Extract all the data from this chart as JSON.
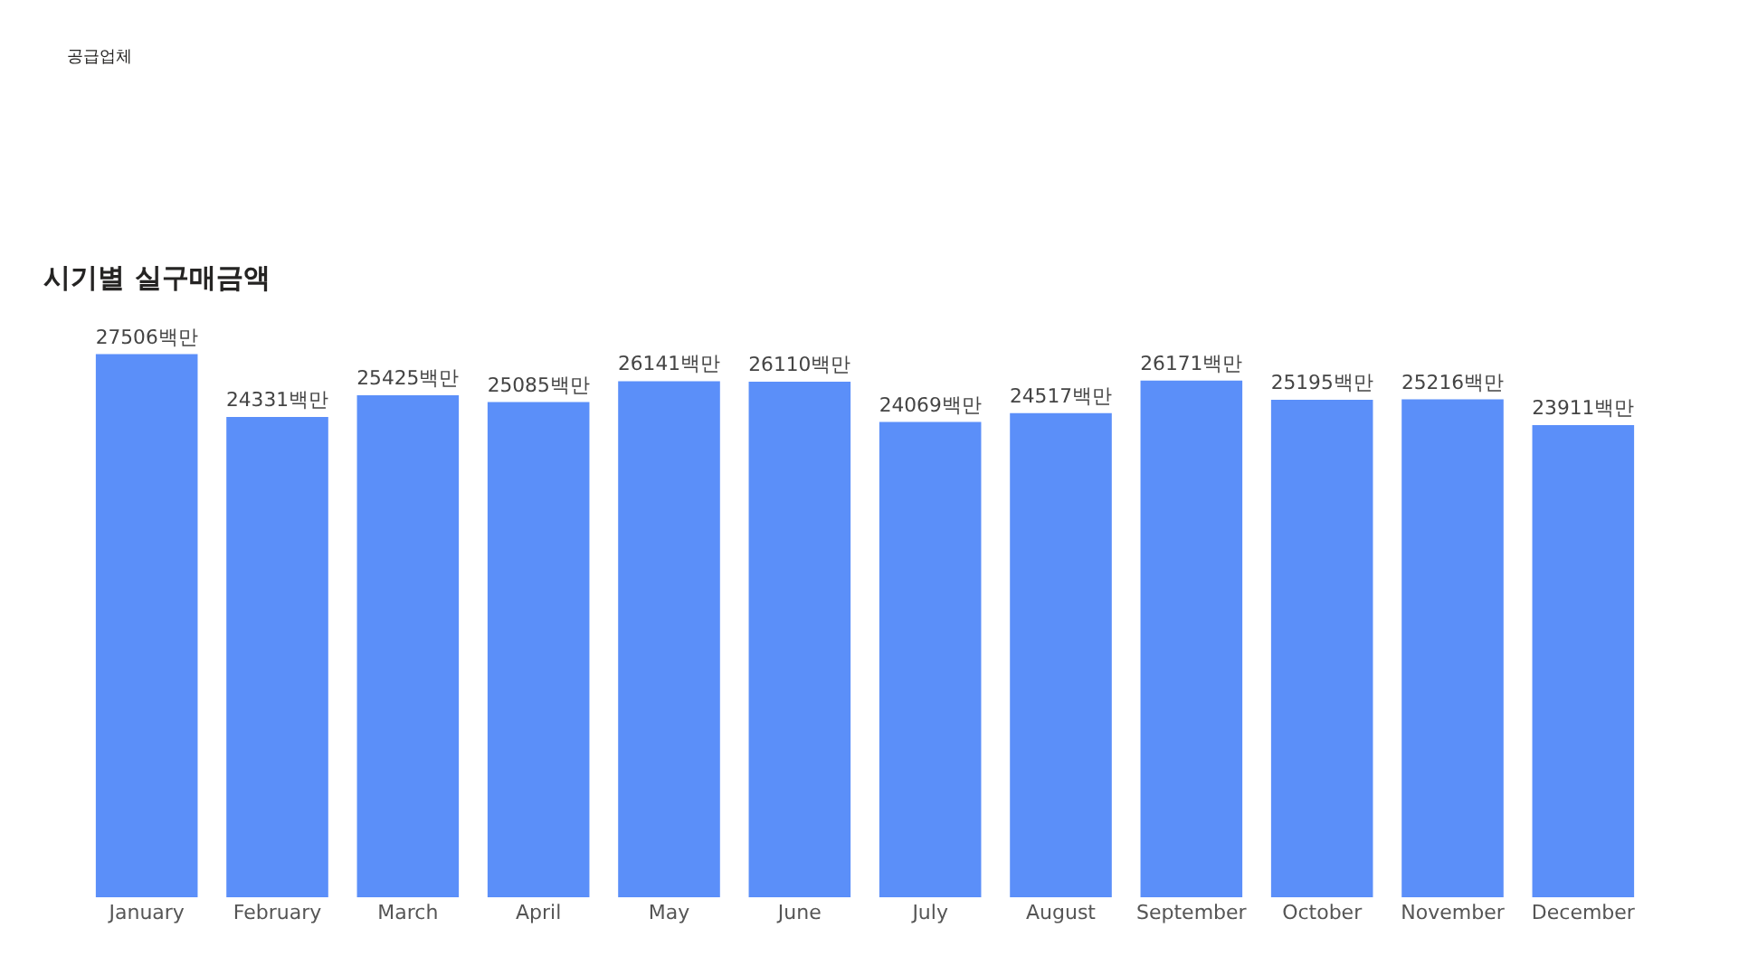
{
  "chart_data": {
    "type": "bar",
    "title": "시기별 실구매금액",
    "annotations": [
      "공급업체"
    ],
    "categories": [
      "January",
      "February",
      "March",
      "April",
      "May",
      "June",
      "July",
      "August",
      "September",
      "October",
      "November",
      "December"
    ],
    "color": "#5b8ff9",
    "values": [
      27506,
      24331,
      25425,
      25085,
      26141,
      26110,
      24069,
      24517,
      26171,
      25195,
      25216,
      23911
    ],
    "value_labels": [
      "27506백만",
      "24331백만",
      "25425백만",
      "25085백만",
      "26141백만",
      "26110백만",
      "24069백만",
      "24517백만",
      "26171백만",
      "25195백만",
      "25216백만",
      "23911백만"
    ],
    "tick_labels": "x"
  }
}
